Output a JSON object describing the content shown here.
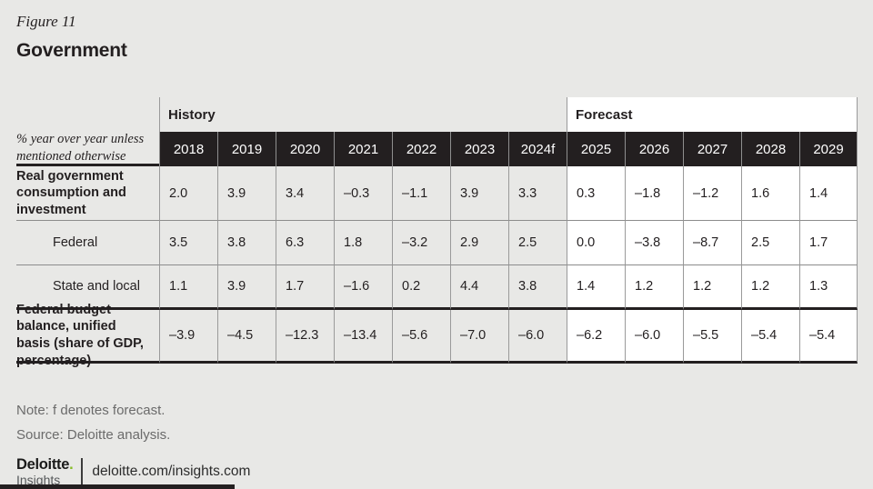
{
  "page": {
    "figure_label": "Figure 11",
    "title": "Government",
    "note": "Note: f denotes forecast.",
    "source": "Source: Deloitte analysis.",
    "footer": {
      "brand": "Deloitte",
      "brand_dot": ".",
      "brand_sub": "Insights",
      "url": "deloitte.com/insights.com"
    }
  },
  "chart_data": {
    "type": "table",
    "figure_label": "Figure 11",
    "title": "Government",
    "unit_note": "% year over year unless mentioned otherwise",
    "column_groups": [
      {
        "label": "History",
        "span": 7
      },
      {
        "label": "Forecast",
        "span": 5
      }
    ],
    "history_columns": 7,
    "columns": [
      "2018",
      "2019",
      "2020",
      "2021",
      "2022",
      "2023",
      "2024f",
      "2025",
      "2026",
      "2027",
      "2028",
      "2029"
    ],
    "rows": [
      {
        "label": "Real government consumption and investment",
        "bold": true,
        "indent": false,
        "values": [
          "2.0",
          "3.9",
          "3.4",
          "–0.3",
          "–1.1",
          "3.9",
          "3.3",
          "0.3",
          "–1.8",
          "–1.2",
          "1.6",
          "1.4"
        ]
      },
      {
        "label": "Federal",
        "bold": false,
        "indent": true,
        "values": [
          "3.5",
          "3.8",
          "6.3",
          "1.8",
          "–3.2",
          "2.9",
          "2.5",
          "0.0",
          "–3.8",
          "–8.7",
          "2.5",
          "1.7"
        ]
      },
      {
        "label": "State and local",
        "bold": false,
        "indent": true,
        "values": [
          "1.1",
          "3.9",
          "1.7",
          "–1.6",
          "0.2",
          "4.4",
          "3.8",
          "1.4",
          "1.2",
          "1.2",
          "1.2",
          "1.3"
        ]
      },
      {
        "label": "Federal budget balance, unified basis (share of GDP, percentage)",
        "bold": true,
        "indent": false,
        "values": [
          "–3.9",
          "–4.5",
          "–12.3",
          "–13.4",
          "–5.6",
          "–7.0",
          "–6.0",
          "–6.2",
          "–6.0",
          "–5.5",
          "–5.4",
          "–5.4"
        ]
      }
    ]
  },
  "colors": {
    "background": "#e8e8e6",
    "header_black": "#231f20",
    "forecast_background": "#ffffff",
    "grid_line": "#9a9a9a",
    "note_gray": "#6b6b6b",
    "brand_green": "#86bc25"
  }
}
